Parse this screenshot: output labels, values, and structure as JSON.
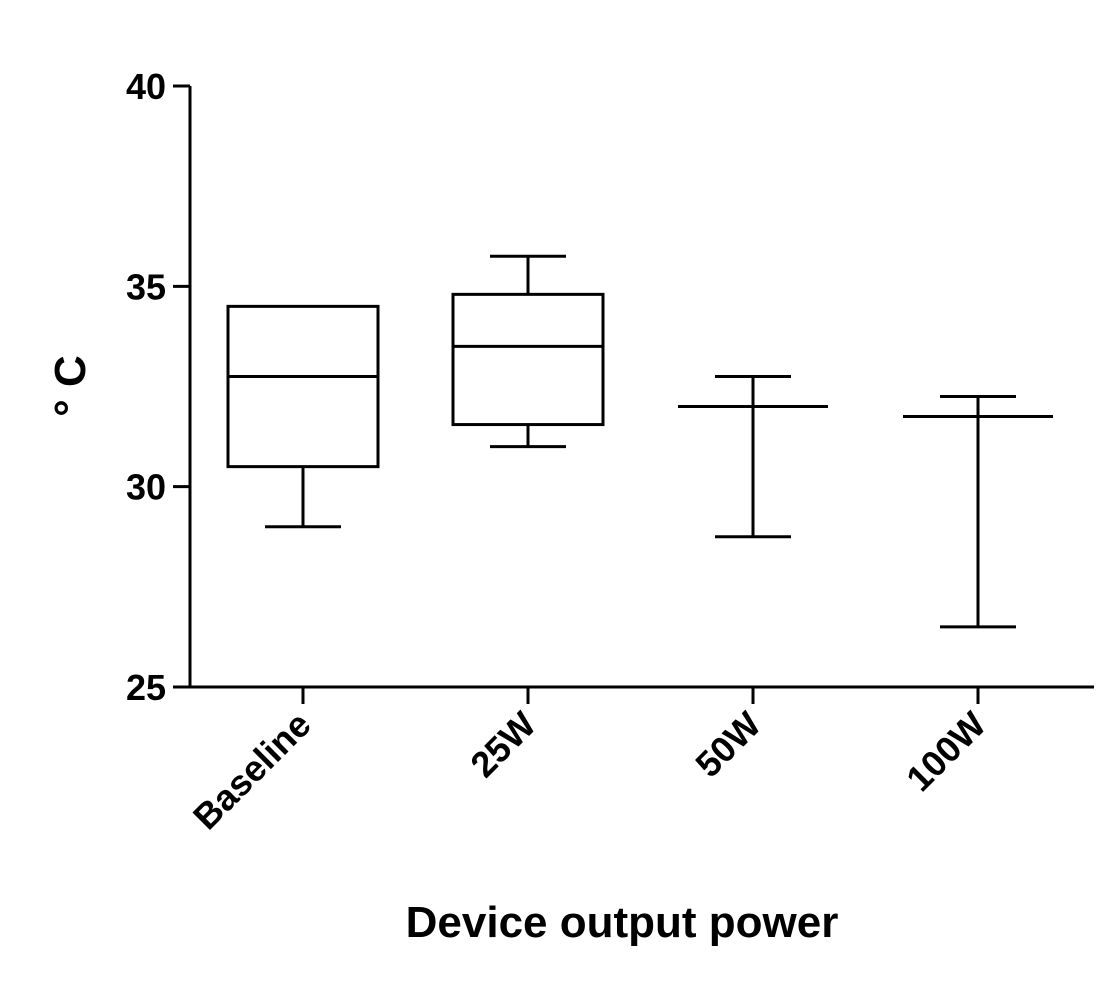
{
  "chart_data": {
    "type": "box",
    "xlabel": "Device output power",
    "ylabel": "° C",
    "ylim": [
      25,
      40
    ],
    "yticks": [
      25,
      30,
      35,
      40
    ],
    "grid": false,
    "categories": [
      "Baseline",
      "25W",
      "50W",
      "100W"
    ],
    "boxes": [
      {
        "category": "Baseline",
        "min": 29.0,
        "q1": 30.5,
        "median": 32.75,
        "q3": 34.5,
        "max": 34.5
      },
      {
        "category": "25W",
        "min": 31.0,
        "q1": 31.55,
        "median": 33.5,
        "q3": 34.8,
        "max": 35.75
      },
      {
        "category": "50W",
        "min": 28.75,
        "q1": 32.0,
        "median": 32.0,
        "q3": 32.0,
        "max": 32.75
      },
      {
        "category": "100W",
        "min": 26.5,
        "q1": 31.75,
        "median": 31.75,
        "q3": 31.75,
        "max": 32.25
      }
    ]
  }
}
